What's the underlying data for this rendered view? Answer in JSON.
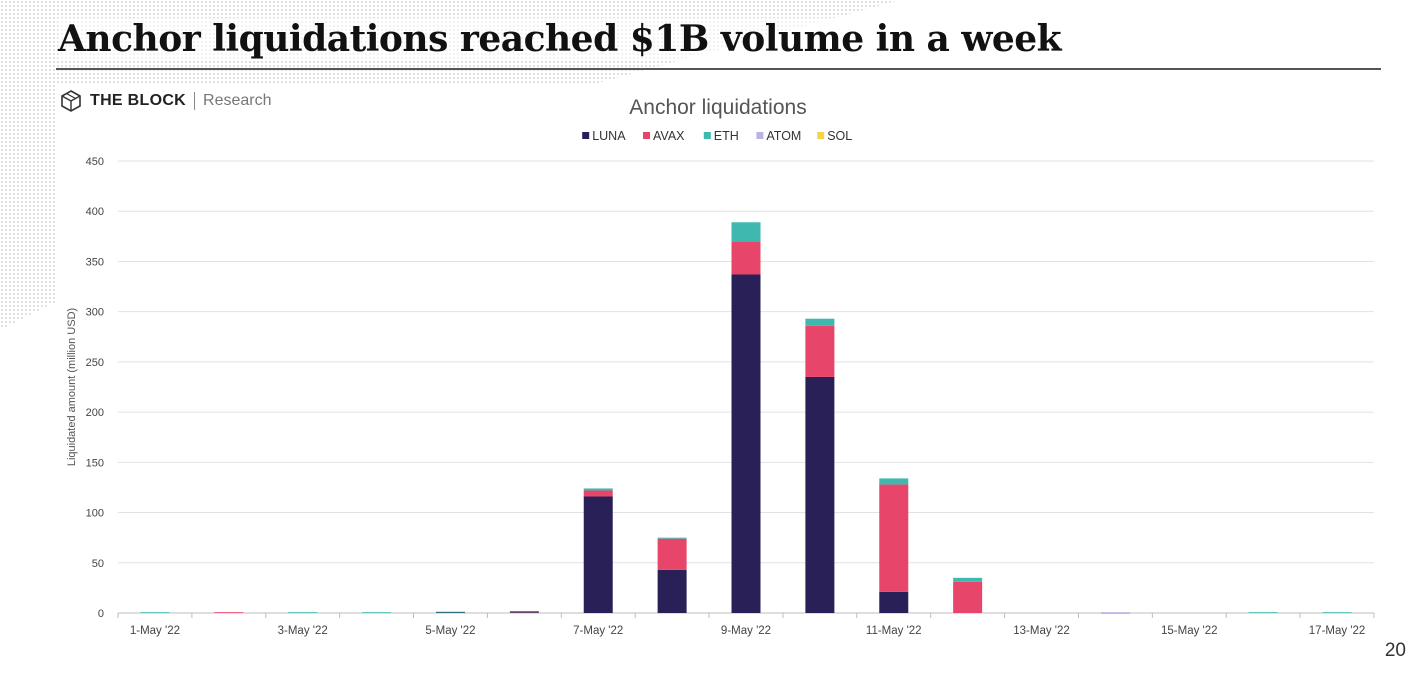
{
  "slide": {
    "title": "Anchor liquidations reached $1B volume in a week",
    "page_number": "20"
  },
  "logo": {
    "brand": "THE BLOCK",
    "sub": "Research"
  },
  "colors": {
    "LUNA": "#2a2058",
    "AVAX": "#e8456a",
    "ETH": "#3fb9b0",
    "ATOM": "#b9b4e6",
    "SOL": "#f5d34a",
    "grid": "#e2e2e2",
    "axis": "#bdbdbd"
  },
  "chart_data": {
    "type": "bar",
    "stacked": true,
    "title": "Anchor liquidations",
    "ylabel": "Liquidated amount (million USD)",
    "xlabel": "",
    "ylim": [
      0,
      450
    ],
    "yticks": [
      0,
      50,
      100,
      150,
      200,
      250,
      300,
      350,
      400,
      450
    ],
    "grid": true,
    "legend_position": "top-center",
    "categories": [
      "1-May '22",
      "2-May '22",
      "3-May '22",
      "4-May '22",
      "5-May '22",
      "6-May '22",
      "7-May '22",
      "8-May '22",
      "9-May '22",
      "10-May '22",
      "11-May '22",
      "12-May '22",
      "13-May '22",
      "14-May '22",
      "15-May '22",
      "16-May '22",
      "17-May '22"
    ],
    "tick_labels": [
      "1-May '22",
      "",
      "3-May '22",
      "",
      "5-May '22",
      "",
      "7-May '22",
      "",
      "9-May '22",
      "",
      "11-May '22",
      "",
      "13-May '22",
      "",
      "15-May '22",
      "",
      "17-May '22"
    ],
    "series": [
      {
        "name": "LUNA",
        "values": [
          0,
          0,
          0,
          0,
          0.8,
          0.8,
          116,
          43,
          337,
          235,
          21,
          0,
          0,
          0,
          0,
          0,
          0
        ]
      },
      {
        "name": "AVAX",
        "values": [
          0,
          0.8,
          0,
          0,
          0,
          1.2,
          6,
          31,
          33,
          51,
          107,
          31,
          0,
          0.3,
          0,
          0,
          0
        ]
      },
      {
        "name": "ETH",
        "values": [
          0.8,
          0,
          0.8,
          0.8,
          0.5,
          0,
          2,
          1,
          19,
          7,
          6,
          4,
          0,
          0,
          0,
          0.8,
          0.8
        ]
      },
      {
        "name": "ATOM",
        "values": [
          0,
          0,
          0,
          0,
          0,
          0,
          0,
          0,
          0,
          0,
          0,
          0,
          0,
          0.5,
          0,
          0,
          0
        ]
      },
      {
        "name": "SOL",
        "values": [
          0,
          0,
          0,
          0,
          0,
          0,
          0,
          0,
          0,
          0,
          0,
          0,
          0,
          0,
          0,
          0,
          0
        ]
      }
    ]
  }
}
